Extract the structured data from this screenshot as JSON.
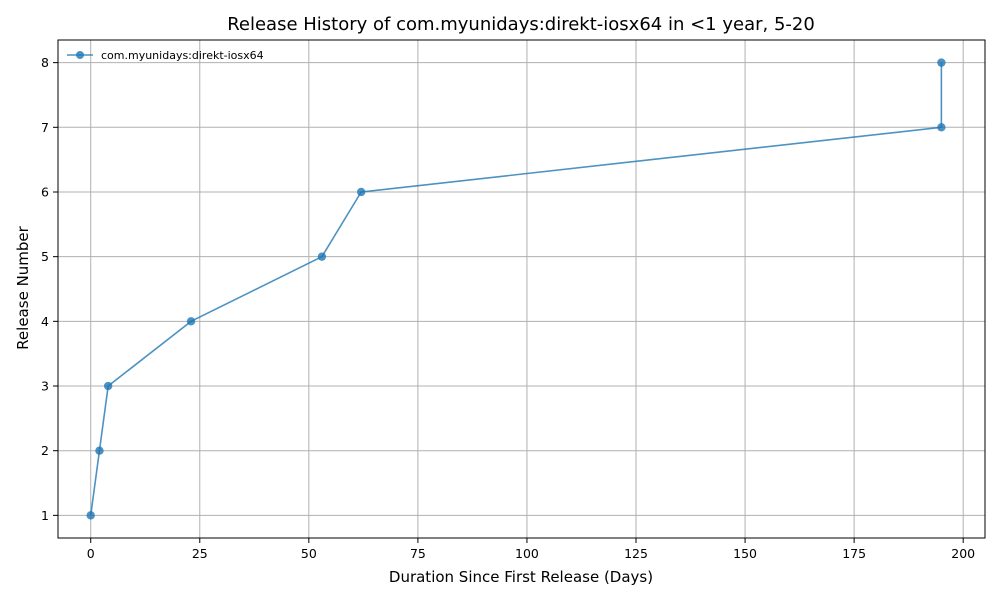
{
  "chart_data": {
    "type": "line",
    "title": "Release History of com.myunidays:direkt-iosx64 in <1 year, 5-20",
    "xlabel": "Duration Since First Release (Days)",
    "ylabel": "Release Number",
    "xlim": [
      -7.5,
      205
    ],
    "ylim": [
      0.65,
      8.35
    ],
    "xticks": [
      0,
      25,
      50,
      75,
      100,
      125,
      150,
      175,
      200
    ],
    "yticks": [
      1,
      2,
      3,
      4,
      5,
      6,
      7,
      8
    ],
    "grid": true,
    "legend_position": "top-left",
    "series": [
      {
        "name": "com.myunidays:direkt-iosx64",
        "color": "#1f77b4",
        "x": [
          0,
          2,
          4,
          23,
          53,
          62,
          195,
          195
        ],
        "y": [
          1,
          2,
          3,
          4,
          5,
          6,
          7,
          8
        ]
      }
    ]
  }
}
